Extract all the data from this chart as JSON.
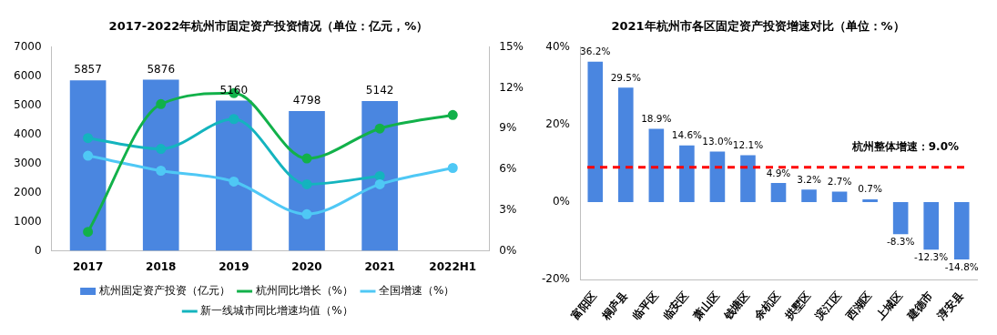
{
  "chart_data": [
    {
      "type": "bar",
      "title": "2017-2022年杭州市固定资产投资情况（单位：亿元，%）",
      "categories": [
        "2017",
        "2018",
        "2019",
        "2020",
        "2021",
        "2022H1"
      ],
      "series": [
        {
          "name": "杭州固定资产投资（亿元）",
          "color": "#4a86e0",
          "values": [
            5857,
            5876,
            5160,
            4798,
            5142,
            null
          ],
          "value_labels": [
            "5857",
            "5876",
            "5160",
            "4798",
            "5142",
            null
          ]
        },
        {
          "name": "杭州同比增长（%）",
          "type": "line",
          "axis": "y2",
          "color": "#12b14a",
          "values": [
            1.4,
            10.8,
            11.6,
            6.8,
            9.0,
            10.0
          ]
        },
        {
          "name": "全国增速（%）",
          "type": "line",
          "axis": "y2",
          "color": "#4fc8f5",
          "values": [
            7.0,
            5.9,
            5.1,
            2.7,
            4.9,
            6.1
          ]
        },
        {
          "name": "新一线城市同比增速均值（%）",
          "type": "line",
          "axis": "y2",
          "color": "#14b4be",
          "values": [
            8.3,
            7.5,
            9.7,
            4.9,
            5.5,
            null
          ]
        }
      ],
      "ylim": [
        0,
        7000
      ],
      "yticks": [
        0,
        1000,
        2000,
        3000,
        4000,
        5000,
        6000,
        7000
      ],
      "y2lim": [
        0,
        15
      ],
      "y2ticks": [
        {
          "value": 0,
          "label": "0%"
        },
        {
          "value": 3,
          "label": "3%"
        },
        {
          "value": 6,
          "label": "6%"
        },
        {
          "value": 9,
          "label": "9%"
        },
        {
          "value": 12,
          "label": "12%"
        },
        {
          "value": 15,
          "label": "15%"
        }
      ],
      "marker": "circle",
      "legend": "bottom",
      "grid": false
    },
    {
      "type": "bar",
      "title": "2021年杭州市各区固定资产投资增速对比（单位：%）",
      "categories": [
        "富阳区",
        "桐庐县",
        "临平区",
        "临安区",
        "萧山区",
        "钱塘区",
        "余杭区",
        "拱墅区",
        "滨江区",
        "西湖区",
        "上城区",
        "建德市",
        "淳安县"
      ],
      "series": [
        {
          "color": "#4a86e0",
          "values": [
            36.2,
            29.5,
            18.9,
            14.6,
            13.0,
            12.1,
            4.9,
            3.2,
            2.7,
            0.7,
            -8.3,
            -12.3,
            -14.8
          ],
          "value_labels": [
            "36.2%",
            "29.5%",
            "18.9%",
            "14.6%",
            "13.0%",
            "12.1%",
            "4.9%",
            "3.2%",
            "2.7%",
            "0.7%",
            "-8.3%",
            "-12.3%",
            "-14.8%"
          ]
        }
      ],
      "ylim": [
        -20,
        40
      ],
      "yticks": [
        {
          "value": -20,
          "label": "-20%"
        },
        {
          "value": 0,
          "label": "0%"
        },
        {
          "value": 20,
          "label": "20%"
        },
        {
          "value": 40,
          "label": "40%"
        }
      ],
      "ref_lines": [
        {
          "axis": "y",
          "value": 9.0,
          "label": "杭州整体增速：9.0%",
          "color": "#ff0000",
          "line_style": "dashed"
        }
      ],
      "legend": false,
      "grid": false
    }
  ]
}
